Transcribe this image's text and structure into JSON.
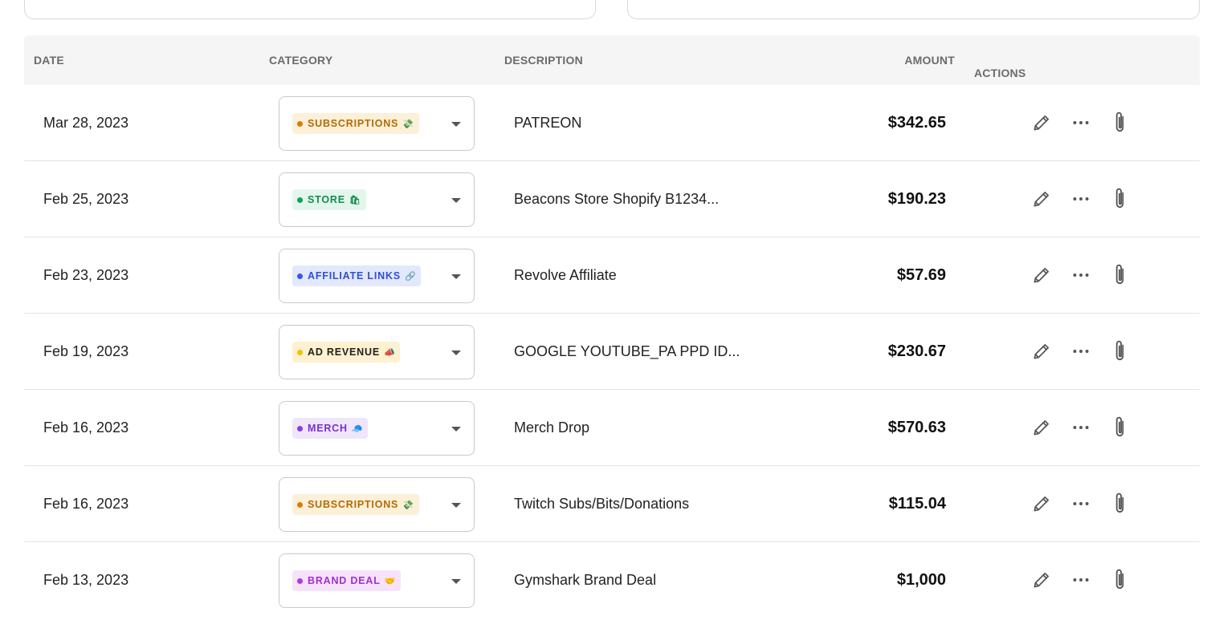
{
  "header": {
    "date": "DATE",
    "category": "CATEGORY",
    "description": "DESCRIPTION",
    "amount": "AMOUNT",
    "actions": "ACTIONS"
  },
  "colors": {
    "subscriptions": {
      "bg": "#fdf0d9",
      "fg": "#b36b00",
      "dot": "#d97c00"
    },
    "store": {
      "bg": "#e3f6ec",
      "fg": "#138a4f",
      "dot": "#14a05a"
    },
    "affiliate": {
      "bg": "#e3e8fc",
      "fg": "#2d4fd6",
      "dot": "#3558e8"
    },
    "adrevenue": {
      "bg": "#fdf1cf",
      "fg": "#1f1f1f",
      "dot": "#f2c200"
    },
    "merch": {
      "bg": "#efe6fb",
      "fg": "#7a2fd0",
      "dot": "#8a3ae0"
    },
    "branddeal": {
      "bg": "#f6e3fb",
      "fg": "#a12fd0",
      "dot": "#b03ae0"
    }
  },
  "rows": [
    {
      "date": "Mar 28, 2023",
      "category": "SUBSCRIPTIONS",
      "emoji": "💸",
      "style": "subscriptions",
      "description": "PATREON",
      "amount": "$342.65"
    },
    {
      "date": "Feb 25, 2023",
      "category": "STORE",
      "emoji": "🛍",
      "style": "store",
      "description": "Beacons Store Shopify B1234...",
      "amount": "$190.23"
    },
    {
      "date": "Feb 23, 2023",
      "category": "AFFILIATE LINKS",
      "emoji": "🔗",
      "style": "affiliate",
      "description": "Revolve Affiliate",
      "amount": "$57.69"
    },
    {
      "date": "Feb 19, 2023",
      "category": "AD REVENUE",
      "emoji": "📣",
      "style": "adrevenue",
      "description": "GOOGLE YOUTUBE_PA PPD ID...",
      "amount": "$230.67"
    },
    {
      "date": "Feb 16, 2023",
      "category": "MERCH",
      "emoji": "🧢",
      "style": "merch",
      "description": "Merch Drop",
      "amount": "$570.63"
    },
    {
      "date": "Feb 16, 2023",
      "category": "SUBSCRIPTIONS",
      "emoji": "💸",
      "style": "subscriptions",
      "description": "Twitch Subs/Bits/Donations",
      "amount": "$115.04"
    },
    {
      "date": "Feb 13, 2023",
      "category": "BRAND DEAL",
      "emoji": "🤝",
      "style": "branddeal",
      "description": "Gymshark Brand Deal",
      "amount": "$1,000"
    }
  ]
}
